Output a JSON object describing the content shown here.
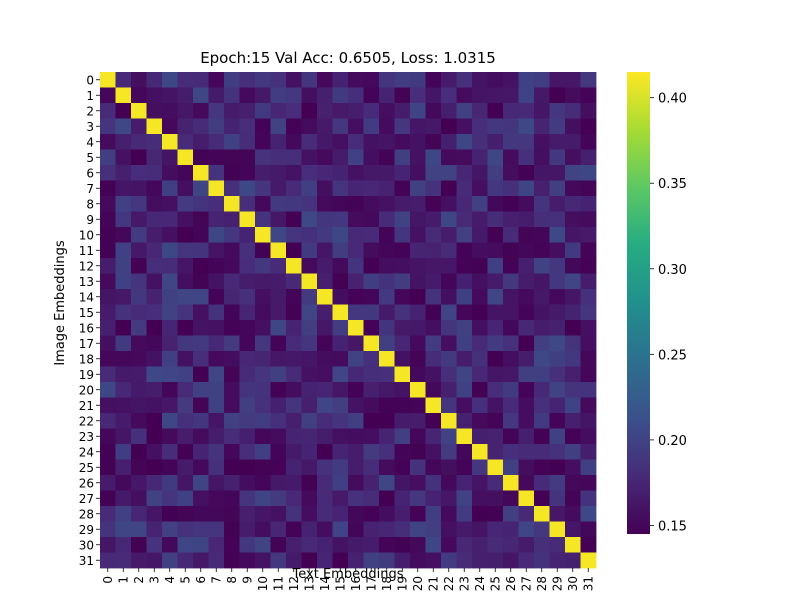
{
  "chart_data": {
    "type": "heatmap",
    "title": "Epoch:15 Val Acc: 0.6505, Loss: 1.0315",
    "xlabel": "Text Embeddings",
    "ylabel": "Image Embeddings",
    "n": 32,
    "x_tick_labels": [
      "0",
      "1",
      "2",
      "3",
      "4",
      "5",
      "6",
      "7",
      "8",
      "9",
      "10",
      "11",
      "12",
      "13",
      "14",
      "15",
      "16",
      "17",
      "18",
      "19",
      "20",
      "21",
      "22",
      "23",
      "24",
      "25",
      "26",
      "27",
      "28",
      "29",
      "30",
      "31"
    ],
    "y_tick_labels": [
      "0",
      "1",
      "2",
      "3",
      "4",
      "5",
      "6",
      "7",
      "8",
      "9",
      "10",
      "11",
      "12",
      "13",
      "14",
      "15",
      "16",
      "17",
      "18",
      "19",
      "20",
      "21",
      "22",
      "23",
      "24",
      "25",
      "26",
      "27",
      "28",
      "29",
      "30",
      "31"
    ],
    "diagonal_value": 0.412,
    "offdiag_typical_range": [
      0.145,
      0.205
    ],
    "colorscale": "viridis",
    "colorbar": {
      "vmin": 0.145,
      "vmax": 0.415,
      "ticks": [
        0.15,
        0.2,
        0.25,
        0.3,
        0.35,
        0.4
      ],
      "tick_labels": [
        "0.15",
        "0.20",
        "0.25",
        "0.30",
        "0.35",
        "0.40"
      ]
    }
  }
}
